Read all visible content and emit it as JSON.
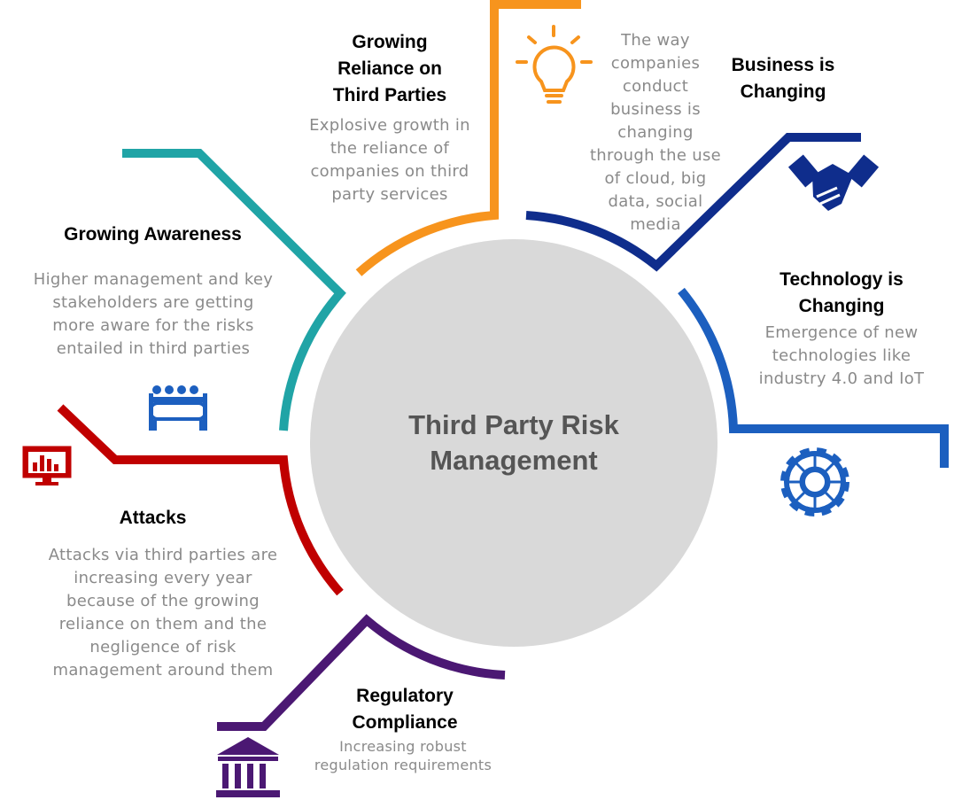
{
  "colors": {
    "orange": "#F7941D",
    "navy": "#0F2D8C",
    "blue": "#1C5FBF",
    "teal": "#20A4A6",
    "red": "#C00000",
    "purple": "#4B1873",
    "circle": "#D9D9D9",
    "center_text": "#555555",
    "desc_text": "#8A8A8A"
  },
  "center": {
    "title": "Third Party Risk Management"
  },
  "sections": {
    "reliance": {
      "title_lines": [
        "Growing",
        "Reliance on",
        "Third Parties"
      ],
      "desc_lines": [
        "Explosive growth in",
        "the reliance of",
        "companies on third",
        "party services"
      ],
      "icon": "lightbulb-icon",
      "color": "#F7941D"
    },
    "business": {
      "title_lines": [
        "Business is",
        "Changing"
      ],
      "desc_lines": [
        "The way",
        "companies",
        "conduct",
        "business is",
        "changing",
        "through the use",
        "of cloud, big",
        "data, social",
        "media"
      ],
      "icon": "handshake-icon",
      "color": "#0F2D8C"
    },
    "technology": {
      "title_lines": [
        "Technology is",
        "Changing"
      ],
      "desc_lines": [
        "Emergence of new",
        "technologies like",
        "industry 4.0 and IoT"
      ],
      "icon": "gear-icon",
      "color": "#1C5FBF"
    },
    "awareness": {
      "title_lines": [
        "Growing Awareness"
      ],
      "desc_lines": [
        "Higher management and key",
        "stakeholders are getting",
        "more aware for the risks",
        "entailed in third parties"
      ],
      "icon": "meeting-table-icon",
      "color": "#20A4A6"
    },
    "attacks": {
      "title_lines": [
        "Attacks"
      ],
      "desc_lines": [
        "Attacks via third parties are",
        "increasing every year",
        "because of the growing",
        "reliance on them and the",
        "negligence of risk",
        "management around them"
      ],
      "icon": "monitor-chart-icon",
      "color": "#C00000"
    },
    "regulatory": {
      "title_lines": [
        "Regulatory",
        "Compliance"
      ],
      "desc_lines": [
        "Increasing robust",
        "regulation requirements"
      ],
      "icon": "bank-building-icon",
      "color": "#4B1873"
    }
  }
}
